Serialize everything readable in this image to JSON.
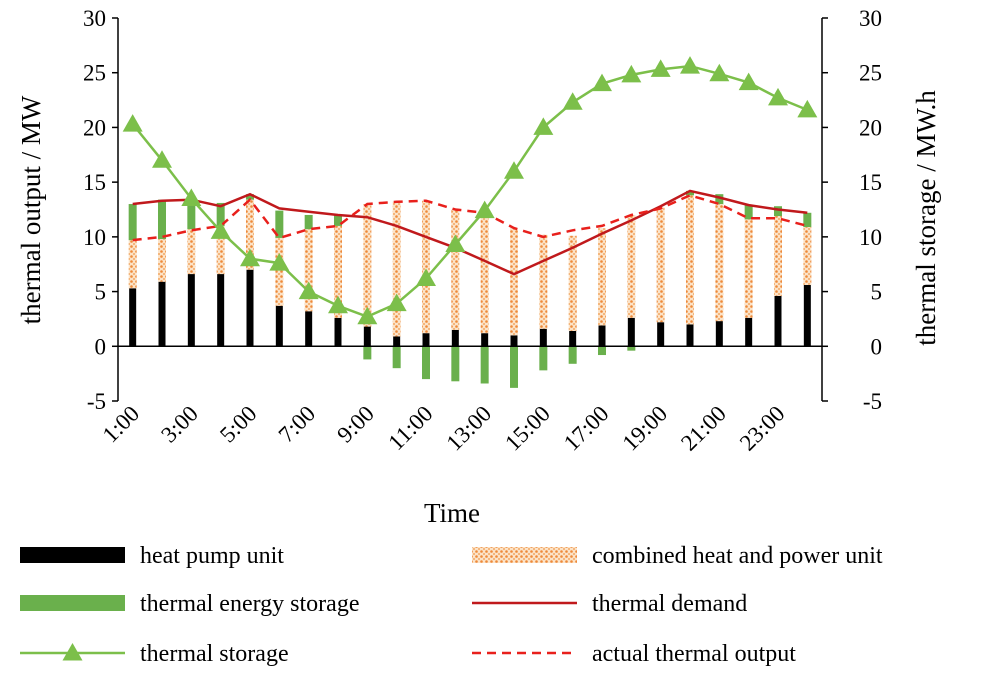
{
  "chart_data": {
    "type": "bar",
    "title": "",
    "xlabel": "Time",
    "ylabel": "thermal output / MW",
    "y2label": "thermal storage / MW.h",
    "ylim": [
      -5,
      30
    ],
    "y2lim": [
      -5,
      30
    ],
    "yticks": [
      "30",
      "25",
      "20",
      "15",
      "10",
      "5",
      "0",
      "-5"
    ],
    "y2ticks": [
      "30",
      "25",
      "20",
      "15",
      "10",
      "5",
      "0",
      "-5"
    ],
    "categories": [
      "1:00",
      "2:00",
      "3:00",
      "4:00",
      "5:00",
      "6:00",
      "7:00",
      "8:00",
      "9:00",
      "10:00",
      "11:00",
      "12:00",
      "13:00",
      "14:00",
      "15:00",
      "16:00",
      "17:00",
      "18:00",
      "19:00",
      "20:00",
      "21:00",
      "22:00",
      "23:00",
      "24:00"
    ],
    "xtick_labels": [
      "1:00",
      "3:00",
      "5:00",
      "7:00",
      "9:00",
      "11:00",
      "13:00",
      "15:00",
      "17:00",
      "19:00",
      "21:00",
      "23:00"
    ],
    "series": [
      {
        "name": "heat pump unit",
        "kind": "bar",
        "values": [
          5.3,
          5.9,
          6.6,
          6.6,
          7.0,
          3.7,
          3.2,
          2.6,
          1.8,
          0.9,
          1.2,
          1.5,
          1.2,
          1.0,
          1.6,
          1.4,
          1.9,
          2.6,
          2.2,
          2.0,
          2.3,
          2.6,
          4.6,
          5.6
        ]
      },
      {
        "name": "combined heat and power unit",
        "kind": "bar",
        "values": [
          4.4,
          3.9,
          4.1,
          4.4,
          6.4,
          6.2,
          7.5,
          8.4,
          11.2,
          12.3,
          12.1,
          11.0,
          11.0,
          9.8,
          8.6,
          8.7,
          8.9,
          9.4,
          10.5,
          11.8,
          10.7,
          9.0,
          7.3,
          5.3
        ]
      },
      {
        "name": "thermal energy storage",
        "kind": "bar",
        "values": [
          3.3,
          3.6,
          2.8,
          2.1,
          0.5,
          2.5,
          1.3,
          1.0,
          -1.2,
          -2.0,
          -3.0,
          -3.2,
          -3.4,
          -3.8,
          -2.2,
          -1.6,
          -0.8,
          -0.4,
          0,
          0.4,
          0.9,
          1.3,
          0.9,
          1.3
        ]
      },
      {
        "name": "thermal demand",
        "kind": "line",
        "values": [
          13.0,
          13.3,
          13.4,
          12.8,
          13.9,
          12.6,
          12.3,
          12.0,
          11.8,
          11.0,
          10.0,
          9.0,
          7.8,
          6.6,
          7.8,
          9.0,
          10.3,
          11.5,
          12.8,
          14.2,
          13.6,
          12.9,
          12.5,
          12.2
        ]
      },
      {
        "name": "actual thermal output",
        "kind": "dashed-line",
        "values": [
          9.7,
          10.0,
          10.6,
          11.0,
          13.4,
          9.9,
          10.7,
          11.0,
          13.0,
          13.2,
          13.3,
          12.5,
          12.2,
          10.8,
          10.0,
          10.6,
          11.0,
          12.0,
          12.6,
          13.8,
          13.0,
          11.7,
          11.7,
          11.0
        ]
      },
      {
        "name": "thermal storage",
        "kind": "line-marker",
        "axis": "right",
        "values": [
          20.3,
          17.0,
          13.5,
          10.5,
          8.0,
          7.6,
          5.0,
          3.7,
          2.7,
          3.9,
          6.2,
          9.3,
          12.4,
          16.0,
          20.0,
          22.3,
          24.0,
          24.8,
          25.3,
          25.6,
          24.9,
          24.1,
          22.7,
          21.6
        ]
      }
    ],
    "legend": {
      "placement": "bottom",
      "items": [
        {
          "label": "heat pump unit",
          "key": "hp"
        },
        {
          "label": "combined heat and power unit",
          "key": "chp"
        },
        {
          "label": "thermal energy storage",
          "key": "tes"
        },
        {
          "label": "thermal demand",
          "key": "demand"
        },
        {
          "label": "thermal storage",
          "key": "storage"
        },
        {
          "label": "actual thermal output",
          "key": "actual"
        }
      ]
    },
    "colors": {
      "hp": "#000000",
      "chp": "#f0a060",
      "tes": "#6ab04c",
      "demand": "#c0191c",
      "actual": "#e8201c",
      "storage": "#7cbf4a"
    }
  }
}
